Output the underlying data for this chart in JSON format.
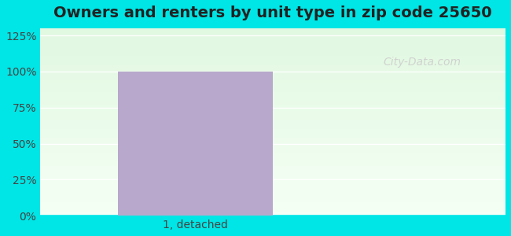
{
  "title": "Owners and renters by unit type in zip code 25650",
  "categories": [
    "1, detached"
  ],
  "values": [
    100
  ],
  "bar_color": "#b8a8cc",
  "bar_width": 0.5,
  "ylim": [
    0,
    125
  ],
  "yticks": [
    0,
    25,
    50,
    75,
    100,
    125
  ],
  "ytick_labels": [
    "0%",
    "25%",
    "50%",
    "75%",
    "100%",
    "125%"
  ],
  "title_fontsize": 14,
  "tick_fontsize": 10,
  "outer_bg_color": "#00e5e5",
  "plot_bg_top": "#e8f5e8",
  "plot_bg_bottom": "#f0ffe8",
  "watermark": "City-Data.com"
}
